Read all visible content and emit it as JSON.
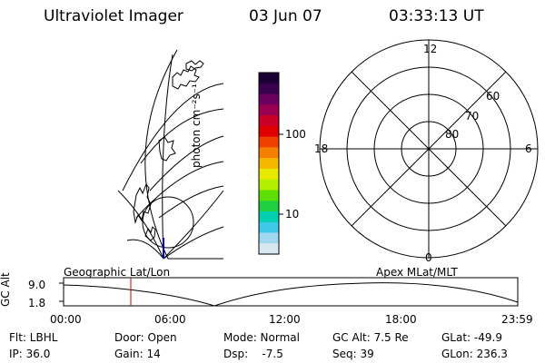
{
  "header": {
    "instrument": "Ultraviolet Imager",
    "date": "03 Jun 07",
    "time": "03:33:13 UT"
  },
  "colorbar": {
    "unit_label": "photon cm⁻²s⁻¹",
    "ticks": [
      "100",
      "10"
    ],
    "colors": [
      "#1a0033",
      "#3a0050",
      "#6a0060",
      "#9a0050",
      "#c80028",
      "#e00000",
      "#f04000",
      "#f58000",
      "#f5b800",
      "#e8e800",
      "#b0f000",
      "#60e000",
      "#20d040",
      "#00d0b0",
      "#40c8e8",
      "#a0d8f0",
      "#d8e8f0"
    ]
  },
  "polar_plot": {
    "mlt_labels": {
      "top": "12",
      "left": "18",
      "right": "6",
      "bottom": "0"
    },
    "lat_labels": [
      "60",
      "70",
      "80"
    ]
  },
  "timeline": {
    "y_axis_label": "GC Alt",
    "y_ticks": [
      "9.0",
      "1.8"
    ],
    "left_title": "Geographic Lat/Lon",
    "right_title": "Apex MLat/MLT",
    "x_ticks": [
      "00:00",
      "06:00",
      "12:00",
      "18:00",
      "23:59"
    ],
    "marker_time_fraction": 0.148,
    "marker_color": "#cc0000"
  },
  "status": {
    "filter": "Flt: LBHL",
    "ip": "IP: 36.0",
    "door": "Door: Open",
    "gain": "Gain: 14",
    "mode": "Mode: Normal",
    "dsp": "Dsp:    -7.5",
    "gc_alt": "GC Alt: 7.5 Re",
    "seq": "Seq: 39",
    "glat": "GLat: -49.9",
    "glon": "GLon: 236.3"
  }
}
